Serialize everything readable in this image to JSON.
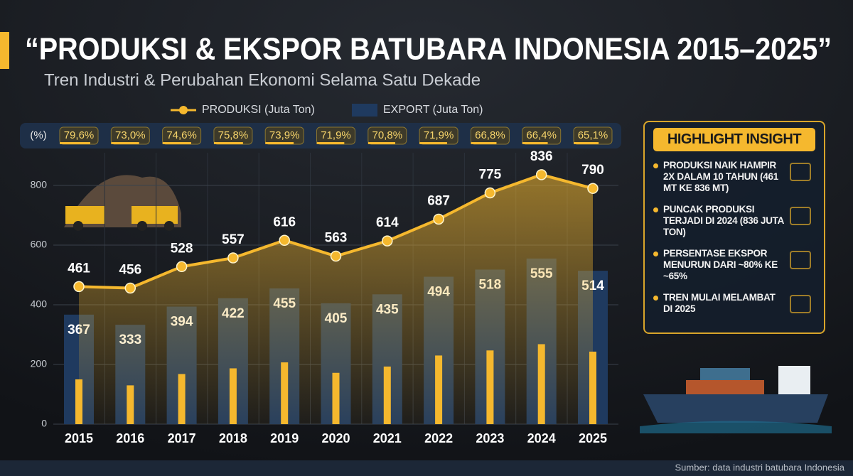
{
  "header": {
    "title": "“PRODUKSI & EKSPOR BATUBARA INDONESIA 2015–2025”",
    "subtitle": "Tren Industri & Perubahan Ekonomi Selama Satu Dekade"
  },
  "chart_data": {
    "type": "combo",
    "categories": [
      "2015",
      "2016",
      "2017",
      "2018",
      "2019",
      "2020",
      "2021",
      "2022",
      "2023",
      "2024",
      "2025"
    ],
    "series": [
      {
        "name": "PRODUKSI (Juta Ton)",
        "type": "line",
        "color": "#f5b82e",
        "values": [
          461,
          456,
          528,
          557,
          616,
          563,
          614,
          687,
          775,
          836,
          790
        ]
      },
      {
        "name": "EXPORT (Juta Ton)",
        "type": "bar",
        "color": "#1f3a5f",
        "values": [
          367,
          333,
          394,
          422,
          455,
          405,
          435,
          494,
          518,
          555,
          514
        ]
      },
      {
        "type": "bar",
        "color": "#f5b82e",
        "values": [
          150,
          130,
          168,
          187,
          207,
          172,
          193,
          230,
          247,
          268,
          243
        ]
      }
    ],
    "share": {
      "label": "(%)",
      "values": [
        79.6,
        73.0,
        74.6,
        75.8,
        73.9,
        71.9,
        70.8,
        71.9,
        66.8,
        66.4,
        65.1
      ],
      "value_labels": [
        "79,6%",
        "73,0%",
        "74,6%",
        "75,8%",
        "73,9%",
        "71,9%",
        "70,8%",
        "71,9%",
        "66,8%",
        "66,4%",
        "65,1%"
      ]
    },
    "ylim": [
      0,
      900
    ],
    "yticks": [
      0,
      200,
      400,
      600,
      800
    ],
    "grid": true
  },
  "highlight": {
    "title": "HIGHLIGHT INSIGHT",
    "items": [
      "PRODUKSI NAIK HAMPIR 2X DALAM 10 TAHUN (461 MT KE 836 MT)",
      "PUNCAK PRODUKSI TERJADI DI 2024 (836 JUTA TON)",
      "PERSENTASE EKSPOR MENURUN DARI ~80% KE ~65%",
      "TREN MULAI MELAMBAT DI 2025"
    ]
  },
  "footer": {
    "source": "Sumber: data industri batubara Indonesia"
  }
}
